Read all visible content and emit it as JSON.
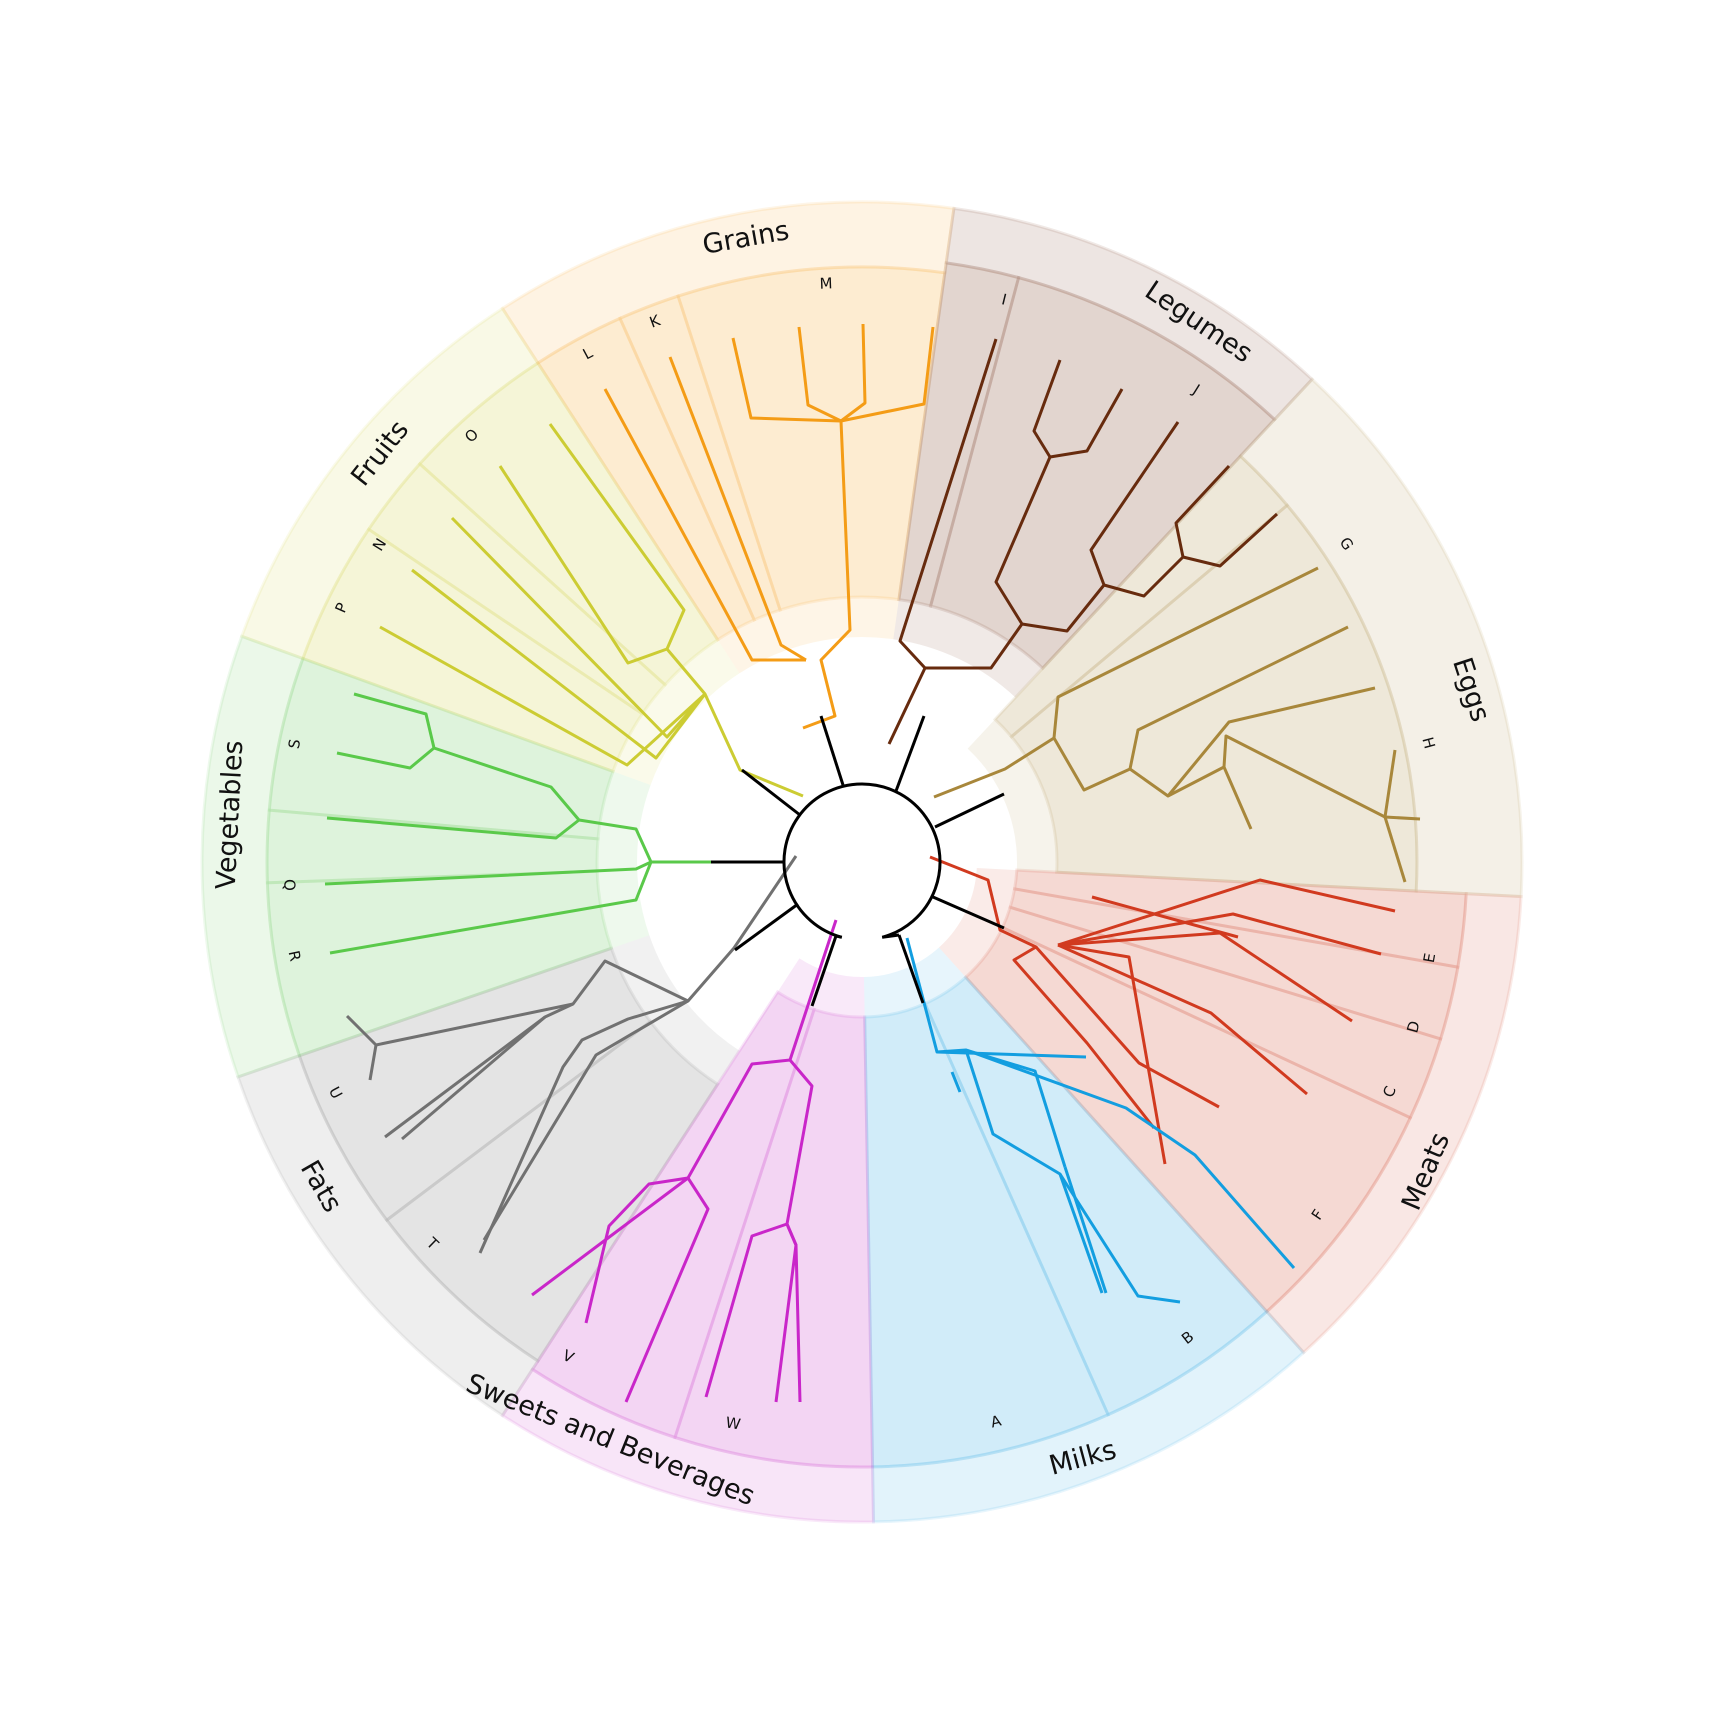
{
  "diagram": {
    "type": "radial-dendrogram",
    "root_color": "#000000",
    "groups": [
      {
        "name": "Meats",
        "color": "#d13a1f",
        "leaves": [
          "C",
          "D",
          "E",
          "F"
        ]
      },
      {
        "name": "Milks",
        "color": "#139ee0",
        "leaves": [
          "A",
          "B"
        ]
      },
      {
        "name": "Sweets and Beverages",
        "color": "#c926c9",
        "leaves": [
          "V",
          "W"
        ]
      },
      {
        "name": "Fats",
        "color": "#717171",
        "leaves": [
          "T",
          "U"
        ]
      },
      {
        "name": "Vegetables",
        "color": "#5ac94a",
        "leaves": [
          "Q",
          "R",
          "S"
        ]
      },
      {
        "name": "Fruits",
        "color": "#cccc33",
        "leaves": [
          "N",
          "O",
          "P"
        ]
      },
      {
        "name": "Grains",
        "color": "#f49c16",
        "leaves": [
          "K",
          "L",
          "M"
        ]
      },
      {
        "name": "Legumes",
        "color": "#672b0e",
        "leaves": [
          "I",
          "J"
        ]
      },
      {
        "name": "Eggs",
        "color": "#a8873b",
        "leaves": [
          "G",
          "H"
        ]
      }
    ]
  }
}
